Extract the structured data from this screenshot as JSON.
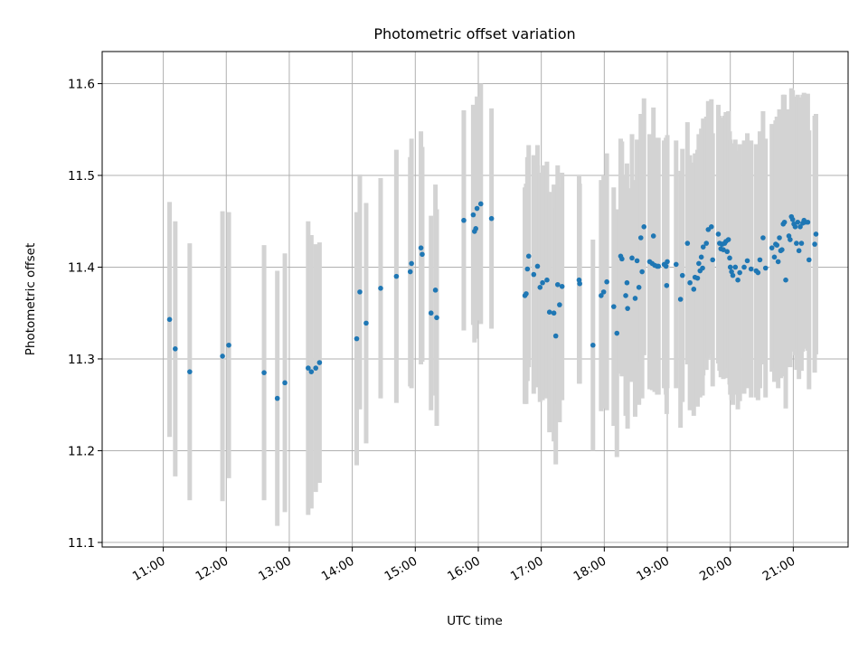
{
  "chart_data": {
    "type": "scatter",
    "title": "Photometric offset variation",
    "xlabel": "UTC time",
    "ylabel": "Photometric offset",
    "x_unit": "UTC hours",
    "xlim": [
      10.03,
      21.87
    ],
    "ylim": [
      11.095,
      11.635
    ],
    "grid": true,
    "x_ticks": [
      {
        "value": 11,
        "label": "11:00"
      },
      {
        "value": 12,
        "label": "12:00"
      },
      {
        "value": 13,
        "label": "13:00"
      },
      {
        "value": 14,
        "label": "14:00"
      },
      {
        "value": 15,
        "label": "15:00"
      },
      {
        "value": 16,
        "label": "16:00"
      },
      {
        "value": 17,
        "label": "17:00"
      },
      {
        "value": 18,
        "label": "18:00"
      },
      {
        "value": 19,
        "label": "19:00"
      },
      {
        "value": 20,
        "label": "20:00"
      },
      {
        "value": 21,
        "label": "21:00"
      }
    ],
    "y_ticks": [
      {
        "value": 11.1,
        "label": "11.1"
      },
      {
        "value": 11.2,
        "label": "11.2"
      },
      {
        "value": 11.3,
        "label": "11.3"
      },
      {
        "value": 11.4,
        "label": "11.4"
      },
      {
        "value": 11.5,
        "label": "11.5"
      },
      {
        "value": 11.6,
        "label": "11.6"
      }
    ],
    "colors": {
      "point": "#1f77b4",
      "errorbar": "#d3d3d3",
      "grid": "#b0b0b0"
    },
    "points": [
      [
        11.1,
        11.343,
        0.128
      ],
      [
        11.19,
        11.311,
        0.139
      ],
      [
        11.42,
        11.286,
        0.14
      ],
      [
        11.94,
        11.303,
        0.158
      ],
      [
        12.04,
        11.315,
        0.145
      ],
      [
        12.6,
        11.285,
        0.139
      ],
      [
        12.81,
        11.257,
        0.139
      ],
      [
        12.93,
        11.274,
        0.141
      ],
      [
        13.3,
        11.29,
        0.16
      ],
      [
        13.35,
        11.286,
        0.149
      ],
      [
        13.42,
        11.29,
        0.135
      ],
      [
        13.48,
        11.296,
        0.131
      ],
      [
        14.07,
        11.322,
        0.138
      ],
      [
        14.12,
        11.373,
        0.128
      ],
      [
        14.22,
        11.339,
        0.131
      ],
      [
        14.45,
        11.377,
        0.12
      ],
      [
        14.7,
        11.39,
        0.138
      ],
      [
        14.92,
        11.395,
        0.125
      ],
      [
        14.94,
        11.404,
        0.136
      ],
      [
        15.09,
        11.421,
        0.127
      ],
      [
        15.11,
        11.414,
        0.117
      ],
      [
        15.25,
        11.35,
        0.106
      ],
      [
        15.32,
        11.375,
        0.115
      ],
      [
        15.34,
        11.345,
        0.118
      ],
      [
        15.77,
        11.451,
        0.12
      ],
      [
        15.92,
        11.457,
        0.12
      ],
      [
        15.94,
        11.439,
        0.121
      ],
      [
        15.96,
        11.442,
        0.12
      ],
      [
        15.98,
        11.464,
        0.122
      ],
      [
        16.04,
        11.469,
        0.131
      ],
      [
        16.21,
        11.453,
        0.12
      ],
      [
        16.74,
        11.369,
        0.118
      ],
      [
        16.76,
        11.371,
        0.12
      ],
      [
        16.78,
        11.398,
        0.122
      ],
      [
        16.8,
        11.412,
        0.121
      ],
      [
        16.88,
        11.392,
        0.13
      ],
      [
        16.94,
        11.401,
        0.132
      ],
      [
        16.98,
        11.378,
        0.125
      ],
      [
        17.02,
        11.383,
        0.128
      ],
      [
        17.09,
        11.386,
        0.129
      ],
      [
        17.13,
        11.351,
        0.131
      ],
      [
        17.2,
        11.35,
        0.14
      ],
      [
        17.23,
        11.325,
        0.14
      ],
      [
        17.26,
        11.381,
        0.13
      ],
      [
        17.29,
        11.359,
        0.128
      ],
      [
        17.33,
        11.379,
        0.124
      ],
      [
        17.6,
        11.386,
        0.113
      ],
      [
        17.61,
        11.382,
        0.109
      ],
      [
        17.82,
        11.315,
        0.115
      ],
      [
        17.95,
        11.369,
        0.126
      ],
      [
        17.99,
        11.373,
        0.127
      ],
      [
        18.04,
        11.384,
        0.14
      ],
      [
        18.15,
        11.357,
        0.13
      ],
      [
        18.2,
        11.328,
        0.135
      ],
      [
        18.26,
        11.412,
        0.128
      ],
      [
        18.28,
        11.409,
        0.128
      ],
      [
        18.34,
        11.369,
        0.131
      ],
      [
        18.36,
        11.383,
        0.13
      ],
      [
        18.37,
        11.355,
        0.131
      ],
      [
        18.44,
        11.41,
        0.135
      ],
      [
        18.49,
        11.366,
        0.129
      ],
      [
        18.52,
        11.407,
        0.132
      ],
      [
        18.55,
        11.378,
        0.128
      ],
      [
        18.58,
        11.432,
        0.135
      ],
      [
        18.6,
        11.395,
        0.138
      ],
      [
        18.63,
        11.444,
        0.14
      ],
      [
        18.72,
        11.406,
        0.139
      ],
      [
        18.76,
        11.404,
        0.138
      ],
      [
        18.78,
        11.434,
        0.14
      ],
      [
        18.8,
        11.402,
        0.138
      ],
      [
        18.84,
        11.401,
        0.14
      ],
      [
        18.86,
        11.401,
        0.14
      ],
      [
        18.95,
        11.403,
        0.135
      ],
      [
        18.98,
        11.401,
        0.14
      ],
      [
        18.99,
        11.38,
        0.14
      ],
      [
        19.0,
        11.406,
        0.138
      ],
      [
        19.14,
        11.403,
        0.135
      ],
      [
        19.21,
        11.365,
        0.14
      ],
      [
        19.24,
        11.391,
        0.138
      ],
      [
        19.32,
        11.426,
        0.132
      ],
      [
        19.36,
        11.383,
        0.139
      ],
      [
        19.42,
        11.376,
        0.138
      ],
      [
        19.44,
        11.389,
        0.135
      ],
      [
        19.48,
        11.388,
        0.14
      ],
      [
        19.5,
        11.404,
        0.141
      ],
      [
        19.52,
        11.396,
        0.138
      ],
      [
        19.54,
        11.411,
        0.14
      ],
      [
        19.56,
        11.399,
        0.139
      ],
      [
        19.57,
        11.422,
        0.14
      ],
      [
        19.62,
        11.426,
        0.138
      ],
      [
        19.65,
        11.441,
        0.14
      ],
      [
        19.7,
        11.444,
        0.139
      ],
      [
        19.72,
        11.408,
        0.138
      ],
      [
        19.81,
        11.436,
        0.141
      ],
      [
        19.83,
        11.426,
        0.139
      ],
      [
        19.85,
        11.42,
        0.14
      ],
      [
        19.87,
        11.425,
        0.138
      ],
      [
        19.89,
        11.419,
        0.141
      ],
      [
        19.91,
        11.426,
        0.139
      ],
      [
        19.93,
        11.428,
        0.141
      ],
      [
        19.95,
        11.417,
        0.138
      ],
      [
        19.97,
        11.43,
        0.14
      ],
      [
        19.99,
        11.41,
        0.138
      ],
      [
        20.0,
        11.4,
        0.139
      ],
      [
        20.02,
        11.395,
        0.14
      ],
      [
        20.04,
        11.391,
        0.141
      ],
      [
        20.08,
        11.4,
        0.139
      ],
      [
        20.12,
        11.386,
        0.141
      ],
      [
        20.15,
        11.394,
        0.14
      ],
      [
        20.22,
        11.4,
        0.138
      ],
      [
        20.27,
        11.407,
        0.139
      ],
      [
        20.33,
        11.398,
        0.14
      ],
      [
        20.41,
        11.396,
        0.138
      ],
      [
        20.44,
        11.394,
        0.139
      ],
      [
        20.47,
        11.408,
        0.14
      ],
      [
        20.52,
        11.432,
        0.138
      ],
      [
        20.56,
        11.399,
        0.141
      ],
      [
        20.66,
        11.421,
        0.135
      ],
      [
        20.7,
        11.411,
        0.136
      ],
      [
        20.72,
        11.425,
        0.135
      ],
      [
        20.74,
        11.424,
        0.14
      ],
      [
        20.76,
        11.406,
        0.138
      ],
      [
        20.78,
        11.432,
        0.14
      ],
      [
        20.8,
        11.418,
        0.139
      ],
      [
        20.82,
        11.419,
        0.138
      ],
      [
        20.84,
        11.447,
        0.141
      ],
      [
        20.86,
        11.449,
        0.139
      ],
      [
        20.88,
        11.386,
        0.14
      ],
      [
        20.93,
        11.434,
        0.138
      ],
      [
        20.95,
        11.43,
        0.139
      ],
      [
        20.97,
        11.455,
        0.14
      ],
      [
        20.99,
        11.452,
        0.141
      ],
      [
        21.01,
        11.447,
        0.139
      ],
      [
        21.03,
        11.444,
        0.14
      ],
      [
        21.05,
        11.426,
        0.138
      ],
      [
        21.07,
        11.449,
        0.139
      ],
      [
        21.09,
        11.418,
        0.14
      ],
      [
        21.11,
        11.444,
        0.141
      ],
      [
        21.13,
        11.426,
        0.139
      ],
      [
        21.15,
        11.448,
        0.14
      ],
      [
        21.17,
        11.451,
        0.139
      ],
      [
        21.19,
        11.449,
        0.138
      ],
      [
        21.23,
        11.449,
        0.14
      ],
      [
        21.25,
        11.408,
        0.141
      ],
      [
        21.34,
        11.425,
        0.14
      ],
      [
        21.36,
        11.436,
        0.131
      ]
    ]
  }
}
